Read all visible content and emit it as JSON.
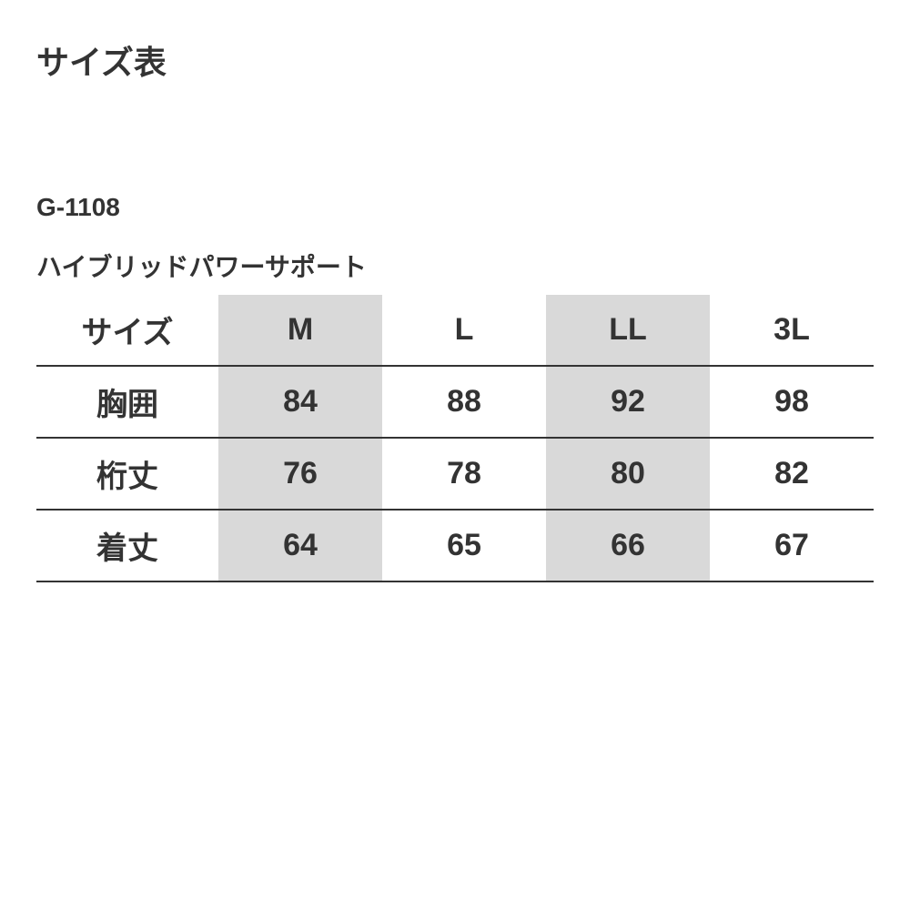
{
  "title": "サイズ表",
  "product": {
    "code": "G-1108",
    "name": "ハイブリッドパワーサポート"
  },
  "table": {
    "columns": [
      "サイズ",
      "M",
      "L",
      "LL",
      "3L"
    ],
    "rows": [
      [
        "胸囲",
        "84",
        "88",
        "92",
        "98"
      ],
      [
        "桁丈",
        "76",
        "78",
        "80",
        "82"
      ],
      [
        "着丈",
        "64",
        "65",
        "66",
        "67"
      ]
    ],
    "striped_cols": [
      1,
      3
    ],
    "border_color": "#333333",
    "stripe_color": "#d9d9d9",
    "text_color": "#333333",
    "background_color": "#ffffff",
    "header_fontsize": 34,
    "cell_fontsize": 34
  }
}
